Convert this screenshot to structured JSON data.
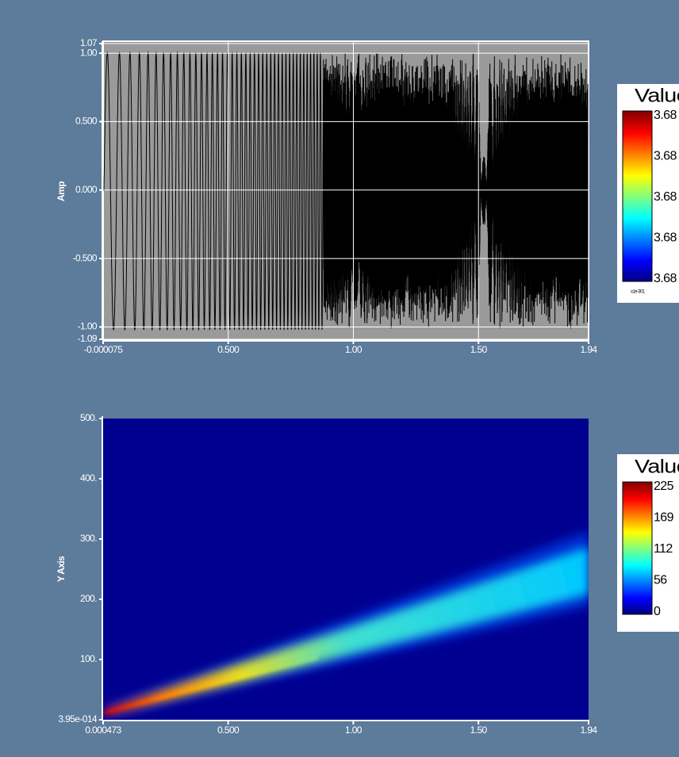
{
  "plots": [
    {
      "y_label": "Amp",
      "xlim": [
        -7.5e-05,
        1.94
      ],
      "ylim": [
        -1.09,
        1.07
      ],
      "xticks": [
        -7.5e-05,
        {
          "value": 0.5,
          "label": "0.500"
        },
        {
          "value": 1,
          "label": "1.00"
        },
        {
          "value": 1.5,
          "label": "1.50"
        },
        1.94
      ],
      "yticks": [
        1.07,
        {
          "value": 1,
          "label": "1.00"
        },
        {
          "value": 0.5,
          "label": "0.500"
        },
        {
          "value": 0,
          "label": "0.000"
        },
        {
          "value": -0.5,
          "label": "-0.500"
        },
        {
          "value": -1,
          "label": "-1.00"
        },
        -1.09
      ],
      "grid": true,
      "legend": {
        "title": "Value",
        "labels": [
          3.68,
          3.68,
          3.68,
          3.68,
          3.68
        ],
        "multiplier": "x1e-301"
      }
    },
    {
      "y_label": "Y Axis",
      "xlim": [
        0.000473,
        1.94
      ],
      "ylim": [
        3.95e-14,
        500
      ],
      "xticks": [
        0.000473,
        {
          "value": 0.5,
          "label": "0.500"
        },
        {
          "value": 1,
          "label": "1.00"
        },
        {
          "value": 1.5,
          "label": "1.50"
        },
        1.94
      ],
      "yticks": [
        {
          "value": 500,
          "label": "500."
        },
        {
          "value": 400,
          "label": "400."
        },
        {
          "value": 300,
          "label": "300."
        },
        {
          "value": 200,
          "label": "200."
        },
        {
          "value": 100,
          "label": "100."
        },
        {
          "value": 3.95e-14,
          "label": "3.95e-014"
        }
      ],
      "grid": false,
      "legend": {
        "title": "Value",
        "labels": [
          225,
          169,
          112,
          56,
          0
        ]
      }
    }
  ]
}
